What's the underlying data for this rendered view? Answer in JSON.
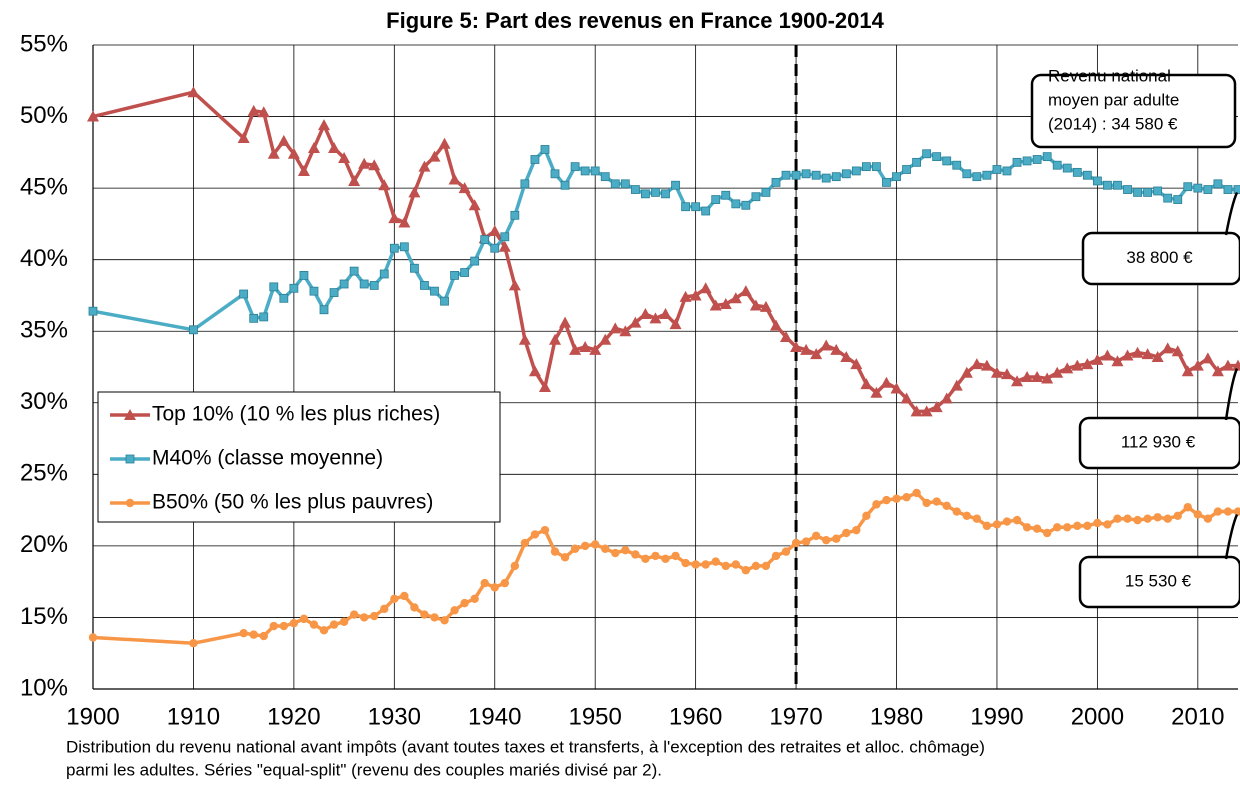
{
  "chart_data": {
    "type": "line",
    "title": "Figure 5: Part des revenus en France 1900-2014",
    "footnote": [
      "Distribution du revenu national avant impôts (avant toutes taxes et transferts, à l'exception des retraites et alloc. chômage)",
      "parmi les adultes. Séries \"equal-split\" (revenu des couples mariés divisé par 2)."
    ],
    "annotations": [
      [
        "Revenu national",
        "moyen par adulte",
        "(2014) : 34 580 €"
      ],
      "38 800 €",
      "112 930 €",
      "15 530 €"
    ],
    "vline": 1970,
    "x": [
      1900,
      1910,
      1915,
      1916,
      1917,
      1918,
      1919,
      1920,
      1921,
      1922,
      1923,
      1924,
      1925,
      1926,
      1927,
      1928,
      1929,
      1930,
      1931,
      1932,
      1933,
      1934,
      1935,
      1936,
      1937,
      1938,
      1939,
      1940,
      1941,
      1942,
      1943,
      1944,
      1945,
      1946,
      1947,
      1948,
      1949,
      1950,
      1951,
      1952,
      1953,
      1954,
      1955,
      1956,
      1957,
      1958,
      1959,
      1960,
      1961,
      1962,
      1963,
      1964,
      1965,
      1966,
      1967,
      1968,
      1969,
      1970,
      1971,
      1972,
      1973,
      1974,
      1975,
      1976,
      1977,
      1978,
      1979,
      1980,
      1981,
      1982,
      1983,
      1984,
      1985,
      1986,
      1987,
      1988,
      1989,
      1990,
      1991,
      1992,
      1993,
      1994,
      1995,
      1996,
      1997,
      1998,
      1999,
      2000,
      2001,
      2002,
      2003,
      2004,
      2005,
      2006,
      2007,
      2008,
      2009,
      2010,
      2011,
      2012,
      2013,
      2014
    ],
    "series": [
      {
        "name": "Top 10% (10 % les plus riches)",
        "color": "#c0504d",
        "marker": "triangle",
        "values": [
          50.0,
          51.7,
          48.5,
          50.4,
          50.3,
          47.4,
          48.3,
          47.4,
          46.2,
          47.8,
          49.4,
          47.8,
          47.1,
          45.5,
          46.7,
          46.6,
          45.2,
          42.9,
          42.6,
          44.7,
          46.5,
          47.2,
          48.1,
          45.6,
          45.0,
          43.8,
          41.5,
          42.0,
          40.9,
          38.2,
          34.4,
          32.2,
          31.1,
          34.4,
          35.6,
          33.7,
          33.9,
          33.7,
          34.4,
          35.2,
          35.0,
          35.6,
          36.2,
          35.9,
          36.2,
          35.5,
          37.4,
          37.5,
          38.0,
          36.8,
          36.9,
          37.3,
          37.8,
          36.8,
          36.7,
          35.4,
          34.6,
          33.9,
          33.7,
          33.4,
          34.0,
          33.7,
          33.2,
          32.7,
          31.3,
          30.7,
          31.4,
          31.0,
          30.3,
          29.4,
          29.4,
          29.7,
          30.3,
          31.2,
          32.1,
          32.7,
          32.6,
          32.1,
          32.0,
          31.5,
          31.8,
          31.8,
          31.7,
          32.1,
          32.4,
          32.6,
          32.7,
          33.0,
          33.3,
          32.9,
          33.3,
          33.5,
          33.4,
          33.2,
          33.8,
          33.6,
          32.2,
          32.6,
          33.1,
          32.2,
          32.6,
          32.6
        ]
      },
      {
        "name": "M40% (classe moyenne)",
        "color": "#4bacc6",
        "marker": "square",
        "values": [
          36.4,
          35.1,
          37.6,
          35.9,
          36.0,
          38.1,
          37.3,
          38.0,
          38.9,
          37.8,
          36.5,
          37.7,
          38.3,
          39.2,
          38.3,
          38.2,
          39.0,
          40.8,
          40.9,
          39.4,
          38.2,
          37.8,
          37.1,
          38.9,
          39.1,
          39.9,
          41.4,
          40.8,
          41.6,
          43.1,
          45.3,
          47.0,
          47.7,
          46.0,
          45.2,
          46.5,
          46.2,
          46.2,
          45.8,
          45.3,
          45.3,
          44.9,
          44.6,
          44.7,
          44.6,
          45.2,
          43.7,
          43.7,
          43.4,
          44.2,
          44.5,
          43.9,
          43.8,
          44.4,
          44.7,
          45.4,
          45.9,
          45.9,
          46.0,
          45.9,
          45.7,
          45.8,
          46.0,
          46.2,
          46.5,
          46.5,
          45.4,
          45.8,
          46.3,
          46.8,
          47.4,
          47.2,
          46.9,
          46.6,
          46.0,
          45.8,
          45.9,
          46.3,
          46.2,
          46.8,
          46.9,
          47.0,
          47.2,
          46.6,
          46.4,
          46.1,
          45.9,
          45.5,
          45.2,
          45.2,
          44.9,
          44.7,
          44.7,
          44.8,
          44.3,
          44.2,
          45.1,
          45.0,
          44.9,
          45.3,
          44.9,
          44.9
        ]
      },
      {
        "name": "B50% (50 % les plus pauvres)",
        "color": "#f79646",
        "marker": "circle",
        "values": [
          13.6,
          13.2,
          13.9,
          13.8,
          13.7,
          14.4,
          14.4,
          14.6,
          14.9,
          14.5,
          14.1,
          14.5,
          14.7,
          15.2,
          15.0,
          15.1,
          15.6,
          16.3,
          16.5,
          15.7,
          15.2,
          15.0,
          14.8,
          15.5,
          16.0,
          16.3,
          17.4,
          17.1,
          17.4,
          18.6,
          20.2,
          20.8,
          21.1,
          19.6,
          19.2,
          19.8,
          20.0,
          20.1,
          19.8,
          19.5,
          19.7,
          19.4,
          19.1,
          19.3,
          19.1,
          19.3,
          18.8,
          18.7,
          18.7,
          18.9,
          18.6,
          18.7,
          18.3,
          18.6,
          18.6,
          19.3,
          19.6,
          20.2,
          20.3,
          20.7,
          20.4,
          20.5,
          20.9,
          21.1,
          22.1,
          22.9,
          23.2,
          23.3,
          23.4,
          23.7,
          23.0,
          23.1,
          22.8,
          22.4,
          22.1,
          21.9,
          21.4,
          21.5,
          21.7,
          21.8,
          21.3,
          21.2,
          20.9,
          21.3,
          21.3,
          21.4,
          21.4,
          21.6,
          21.5,
          21.9,
          21.9,
          21.8,
          21.9,
          22.0,
          21.9,
          22.1,
          22.7,
          22.2,
          21.9,
          22.4,
          22.4,
          22.4
        ]
      }
    ],
    "xlim": [
      1900,
      2014
    ],
    "xticks": [
      1900,
      1910,
      1920,
      1930,
      1940,
      1950,
      1960,
      1970,
      1980,
      1990,
      2000,
      2010
    ],
    "ylim": [
      10,
      55
    ],
    "yticks": [
      {
        "value": 10,
        "label": "10%"
      },
      {
        "value": 15,
        "label": "15%"
      },
      {
        "value": 20,
        "label": "20%"
      },
      {
        "value": 25,
        "label": "25%"
      },
      {
        "value": 30,
        "label": "30%"
      },
      {
        "value": 35,
        "label": "35%"
      },
      {
        "value": 40,
        "label": "40%"
      },
      {
        "value": 45,
        "label": "45%"
      },
      {
        "value": 50,
        "label": "50%"
      },
      {
        "value": 55,
        "label": "55%"
      }
    ],
    "grid": true,
    "legend": "lower left"
  }
}
